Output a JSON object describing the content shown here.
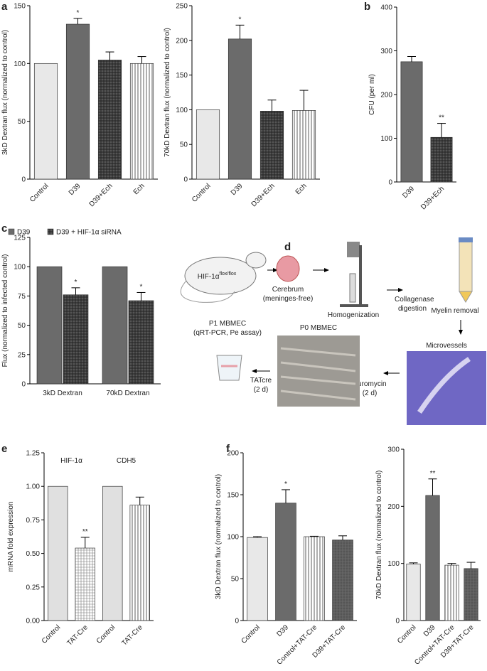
{
  "chart_data": [
    {
      "type": "bar",
      "panel_label": "a",
      "ylabel": "3kD Dextran flux (normalized to control)",
      "categories": [
        "Control",
        "D39",
        "D39+Ech",
        "Ech"
      ],
      "values": [
        100,
        134,
        103,
        100
      ],
      "errors": [
        0,
        5,
        7,
        6
      ],
      "value_annotations": [
        null,
        "*",
        null,
        null
      ],
      "colors": [
        "#e8e8e8",
        "#6b6b6b",
        "#555555",
        "#ffffff"
      ],
      "patterns": [
        "solid",
        "solid",
        "crosshatch",
        "vlines"
      ],
      "ylim": [
        0,
        150
      ],
      "yticks": [
        0,
        50,
        100,
        150
      ]
    },
    {
      "type": "bar",
      "ylabel": "70kD Dextran flux (normalized to control)",
      "categories": [
        "Control",
        "D39",
        "D39+Ech",
        "Ech"
      ],
      "values": [
        100,
        202,
        98,
        99
      ],
      "errors": [
        0,
        20,
        16,
        29
      ],
      "value_annotations": [
        null,
        "*",
        null,
        null
      ],
      "colors": [
        "#e8e8e8",
        "#6b6b6b",
        "#555555",
        "#ffffff"
      ],
      "patterns": [
        "solid",
        "solid",
        "crosshatch",
        "vlines"
      ],
      "ylim": [
        0,
        250
      ],
      "yticks": [
        0,
        50,
        100,
        150,
        200,
        250
      ]
    },
    {
      "type": "bar",
      "panel_label": "b",
      "ylabel": "CFU (per ml)",
      "categories": [
        "D39",
        "D39+Ech"
      ],
      "values": [
        275,
        102
      ],
      "errors": [
        12,
        32
      ],
      "value_annotations": [
        null,
        "**"
      ],
      "colors": [
        "#6b6b6b",
        "#555555"
      ],
      "patterns": [
        "solid",
        "crosshatch"
      ],
      "ylim": [
        0,
        400
      ],
      "yticks": [
        0,
        100,
        200,
        300,
        400
      ]
    },
    {
      "type": "grouped-bar",
      "panel_label": "c",
      "ylabel": "Flux (normalized to infected control)",
      "categories": [
        "3kD Dextran",
        "70kD Dextran"
      ],
      "legend": "top",
      "series": [
        {
          "name": "D39",
          "color": "#6b6b6b",
          "pattern": "solid",
          "values": [
            100,
            100
          ],
          "errors": [
            0,
            0
          ],
          "value_annotations": [
            null,
            null
          ]
        },
        {
          "name": "D39 + HIF-1α siRNA",
          "color": "#555555",
          "pattern": "crosshatch",
          "values": [
            76,
            71
          ],
          "errors": [
            6,
            7
          ],
          "value_annotations": [
            "*",
            "*"
          ]
        }
      ],
      "ylim": [
        0,
        125
      ],
      "yticks": [
        0,
        25,
        50,
        75,
        100,
        125
      ]
    },
    {
      "type": "bar",
      "panel_label": "e",
      "ylabel": "mRNA fold expression",
      "group_labels": [
        "HIF-1α",
        "CDH5"
      ],
      "categories": [
        "Control",
        "TAT-Cre",
        "Control",
        "TAT-Cre"
      ],
      "values": [
        1.0,
        0.54,
        1.0,
        0.86
      ],
      "errors": [
        0,
        0.08,
        0,
        0.06
      ],
      "value_annotations": [
        null,
        "**",
        null,
        null
      ],
      "colors": [
        "#e0e0e0",
        "#ffffff",
        "#e0e0e0",
        "#ffffff"
      ],
      "patterns": [
        "solid",
        "checker",
        "solid",
        "vlines"
      ],
      "ylim": [
        0,
        1.25
      ],
      "yticks": [
        {
          "value": 0,
          "label": "0.00"
        },
        {
          "value": 0.25,
          "label": "0.25"
        },
        {
          "value": 0.5,
          "label": "0.50"
        },
        {
          "value": 0.75,
          "label": "0.75"
        },
        {
          "value": 1,
          "label": "1.00"
        },
        {
          "value": 1.25,
          "label": "1.25"
        }
      ]
    },
    {
      "type": "bar",
      "panel_label": "f",
      "ylabel": "3kD Dextran flux (normalized to control)",
      "categories": [
        "Control",
        "D39",
        "Control+TAT-Cre",
        "D39+TAT-Cre"
      ],
      "values": [
        99,
        140,
        100,
        96
      ],
      "errors": [
        1,
        16,
        0.5,
        5
      ],
      "value_annotations": [
        null,
        "*",
        null,
        null
      ],
      "colors": [
        "#e8e8e8",
        "#6b6b6b",
        "#ffffff",
        "#555555"
      ],
      "patterns": [
        "solid",
        "solid",
        "vlines",
        "checker"
      ],
      "ylim": [
        0,
        200
      ],
      "yticks": [
        0,
        50,
        100,
        150,
        200
      ]
    },
    {
      "type": "bar",
      "ylabel": "70kD Dextran flux (normalized to control)",
      "categories": [
        "Control",
        "D39",
        "Control+TAT-Cre",
        "D39+TAT-Cre"
      ],
      "values": [
        99,
        219,
        97,
        91
      ],
      "errors": [
        2,
        29,
        3,
        11
      ],
      "value_annotations": [
        null,
        "**",
        null,
        null
      ],
      "colors": [
        "#e8e8e8",
        "#6b6b6b",
        "#ffffff",
        "#555555"
      ],
      "patterns": [
        "solid",
        "solid",
        "vlines",
        "checker"
      ],
      "ylim": [
        0,
        300
      ],
      "yticks": [
        0,
        100,
        200,
        300
      ]
    }
  ],
  "diagram": {
    "panel_label": "d",
    "mouse_label": "HIF-1α",
    "mouse_label_sup": "flox/flox",
    "cerebrum": [
      "Cerebrum",
      "(meninges-free)"
    ],
    "homogenization": "Homogenization",
    "collagenase": [
      "Collagenase",
      "digestion"
    ],
    "myelin": "Myelin removal",
    "microvessels": "Microvessels",
    "puromycin": [
      "Puromycin",
      "(2 d)"
    ],
    "p0": "P0 MBMEC",
    "tatcre": [
      "TATcre",
      "(2 d)"
    ],
    "p1": [
      "P1 MBMEC",
      "(qRT-PCR, Pe assay)"
    ]
  }
}
